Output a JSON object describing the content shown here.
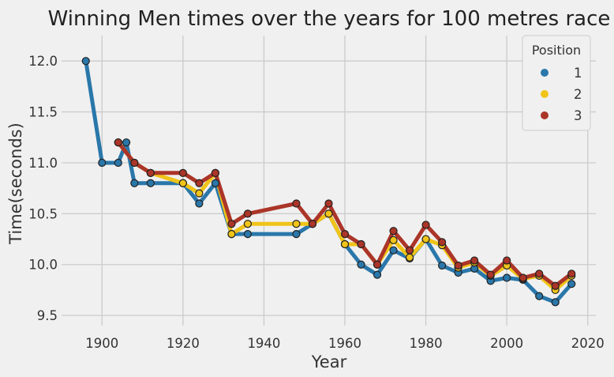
{
  "chart_data": {
    "type": "line",
    "title": "Winning Men times over the years for 100 metres race",
    "xlabel": "Year",
    "ylabel": "Time(seconds)",
    "xlim": [
      1890,
      2022
    ],
    "ylim": [
      9.4,
      12.25
    ],
    "xticks": [
      1900,
      1920,
      1940,
      1960,
      1980,
      2000,
      2020
    ],
    "yticks": [
      9.5,
      10.0,
      10.5,
      11.0,
      11.5,
      12.0
    ],
    "ytick_labels": [
      "9.5",
      "10.0",
      "10.5",
      "11.0",
      "11.5",
      "12.0"
    ],
    "grid": true,
    "legend": {
      "title": "Position",
      "placement": "top-right",
      "entries": [
        "1",
        "2",
        "3"
      ]
    },
    "series": [
      {
        "name": "1",
        "color": "#2a77aa",
        "x": [
          1896,
          1900,
          1904,
          1906,
          1908,
          1912,
          1920,
          1924,
          1928,
          1932,
          1936,
          1948,
          1952,
          1956,
          1960,
          1964,
          1968,
          1972,
          1976,
          1980,
          1984,
          1988,
          1992,
          1996,
          2000,
          2004,
          2008,
          2012,
          2016
        ],
        "values": [
          12.0,
          11.0,
          11.0,
          11.2,
          10.8,
          10.8,
          10.8,
          10.6,
          10.8,
          10.3,
          10.3,
          10.3,
          10.4,
          10.5,
          10.2,
          10.0,
          9.9,
          10.14,
          10.06,
          10.25,
          9.99,
          9.92,
          9.96,
          9.84,
          9.87,
          9.85,
          9.69,
          9.63,
          9.81
        ]
      },
      {
        "name": "2",
        "color": "#f0c419",
        "x": [
          1904,
          1908,
          1912,
          1920,
          1924,
          1928,
          1932,
          1936,
          1948,
          1952,
          1956,
          1960,
          1964,
          1968,
          1972,
          1976,
          1980,
          1984,
          1988,
          1992,
          1996,
          2000,
          2004,
          2008,
          2012,
          2016
        ],
        "values": [
          11.2,
          11.0,
          10.9,
          10.8,
          10.7,
          10.9,
          10.3,
          10.4,
          10.4,
          10.4,
          10.5,
          10.2,
          10.2,
          10.0,
          10.24,
          10.07,
          10.25,
          10.19,
          9.97,
          10.02,
          9.89,
          9.99,
          9.86,
          9.89,
          9.75,
          9.89
        ]
      },
      {
        "name": "3",
        "color": "#ab3528",
        "x": [
          1904,
          1908,
          1912,
          1920,
          1924,
          1928,
          1932,
          1936,
          1948,
          1952,
          1956,
          1960,
          1964,
          1968,
          1972,
          1976,
          1980,
          1984,
          1988,
          1992,
          1996,
          2000,
          2004,
          2008,
          2012,
          2016
        ],
        "values": [
          11.2,
          11.0,
          10.9,
          10.9,
          10.8,
          10.9,
          10.4,
          10.5,
          10.6,
          10.4,
          10.6,
          10.3,
          10.2,
          10.0,
          10.33,
          10.14,
          10.39,
          10.22,
          9.99,
          10.04,
          9.9,
          10.04,
          9.87,
          9.91,
          9.79,
          9.91
        ]
      }
    ]
  }
}
